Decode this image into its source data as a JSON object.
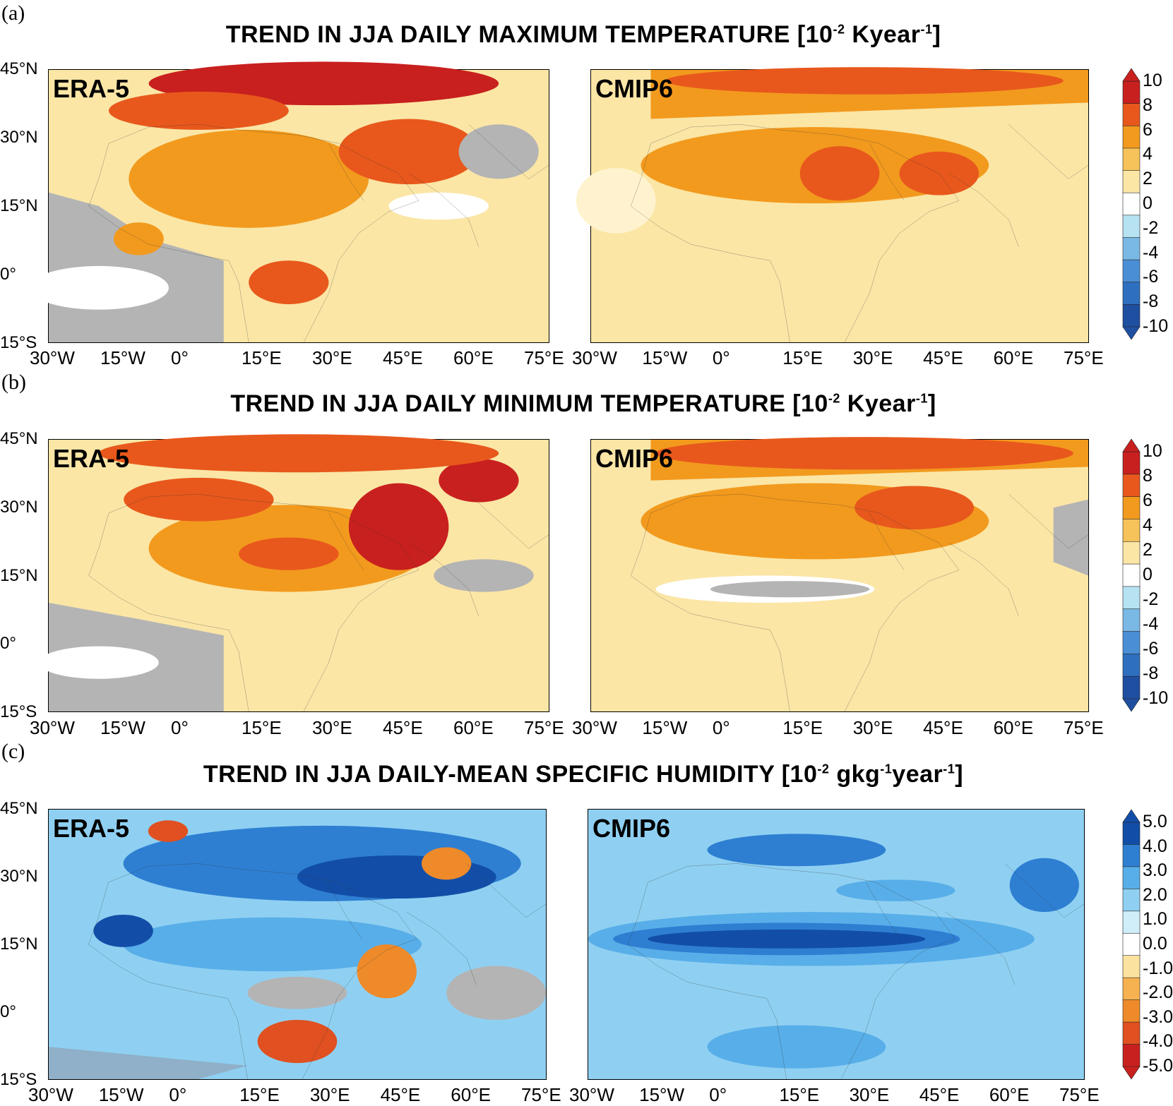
{
  "panels": [
    {
      "letter": "(a)",
      "title_main": "TREND IN JJA DAILY MAXIMUM TEMPERATURE [10",
      "title_sup1": "-2",
      "title_mid": " Kyear",
      "title_sup2": "-1",
      "title_mid2": "",
      "title_sup3": "",
      "title_end": "]",
      "left_label": "ERA-5",
      "right_label": "CMIP6",
      "colorbar_ticks": [
        "10",
        "8",
        "6",
        "4",
        "2",
        "0",
        "-2",
        "-4",
        "-6",
        "-8",
        "-10"
      ]
    },
    {
      "letter": "(b)",
      "title_main": "TREND IN JJA DAILY MINIMUM TEMPERATURE [10",
      "title_sup1": "-2",
      "title_mid": " Kyear",
      "title_sup2": "-1",
      "title_mid2": "",
      "title_sup3": "",
      "title_end": "]",
      "left_label": "ERA-5",
      "right_label": "CMIP6",
      "colorbar_ticks": [
        "10",
        "8",
        "6",
        "4",
        "2",
        "0",
        "-2",
        "-4",
        "-6",
        "-8",
        "-10"
      ]
    },
    {
      "letter": "(c)",
      "title_main": "TREND IN JJA DAILY-MEAN SPECIFIC HUMIDITY [10",
      "title_sup1": "-2",
      "title_mid": " gkg",
      "title_sup2": "-1",
      "title_mid2": "year",
      "title_sup3": "-1",
      "title_end": "]",
      "left_label": "ERA-5",
      "right_label": "CMIP6",
      "colorbar_ticks": [
        "5.0",
        "4.0",
        "3.0",
        "2.0",
        "1.0",
        "0.0",
        "-1.0",
        "-2.0",
        "-3.0",
        "-4.0",
        "-5.0"
      ]
    }
  ],
  "lat_ticks": [
    "45°N",
    "30°N",
    "15°N",
    "0°",
    "15°S"
  ],
  "lon_ticks": [
    "30°W",
    "15°W",
    "0°",
    "15°E",
    "30°E",
    "45°E",
    "60°E",
    "75°E"
  ],
  "colors": {
    "temp_scale": [
      "#1f4fa0",
      "#2e6fc0",
      "#4a8fd6",
      "#7ab8e6",
      "#b6e2f2",
      "#ffffff",
      "#fbe6a6",
      "#f6c25a",
      "#f29a1e",
      "#e8581c",
      "#c8201e"
    ],
    "humidity_scale": [
      "#c8201e",
      "#e05020",
      "#ee8a2a",
      "#f6b250",
      "#fbe29e",
      "#ffffff",
      "#cfeefa",
      "#8fd0f2",
      "#58aee8",
      "#2e7fd2",
      "#124ea8"
    ],
    "insignificant": "#b4b4b4",
    "ocean_light_temp": "#fbe6a6",
    "ocean_light_hum": "#8fd0f2"
  }
}
